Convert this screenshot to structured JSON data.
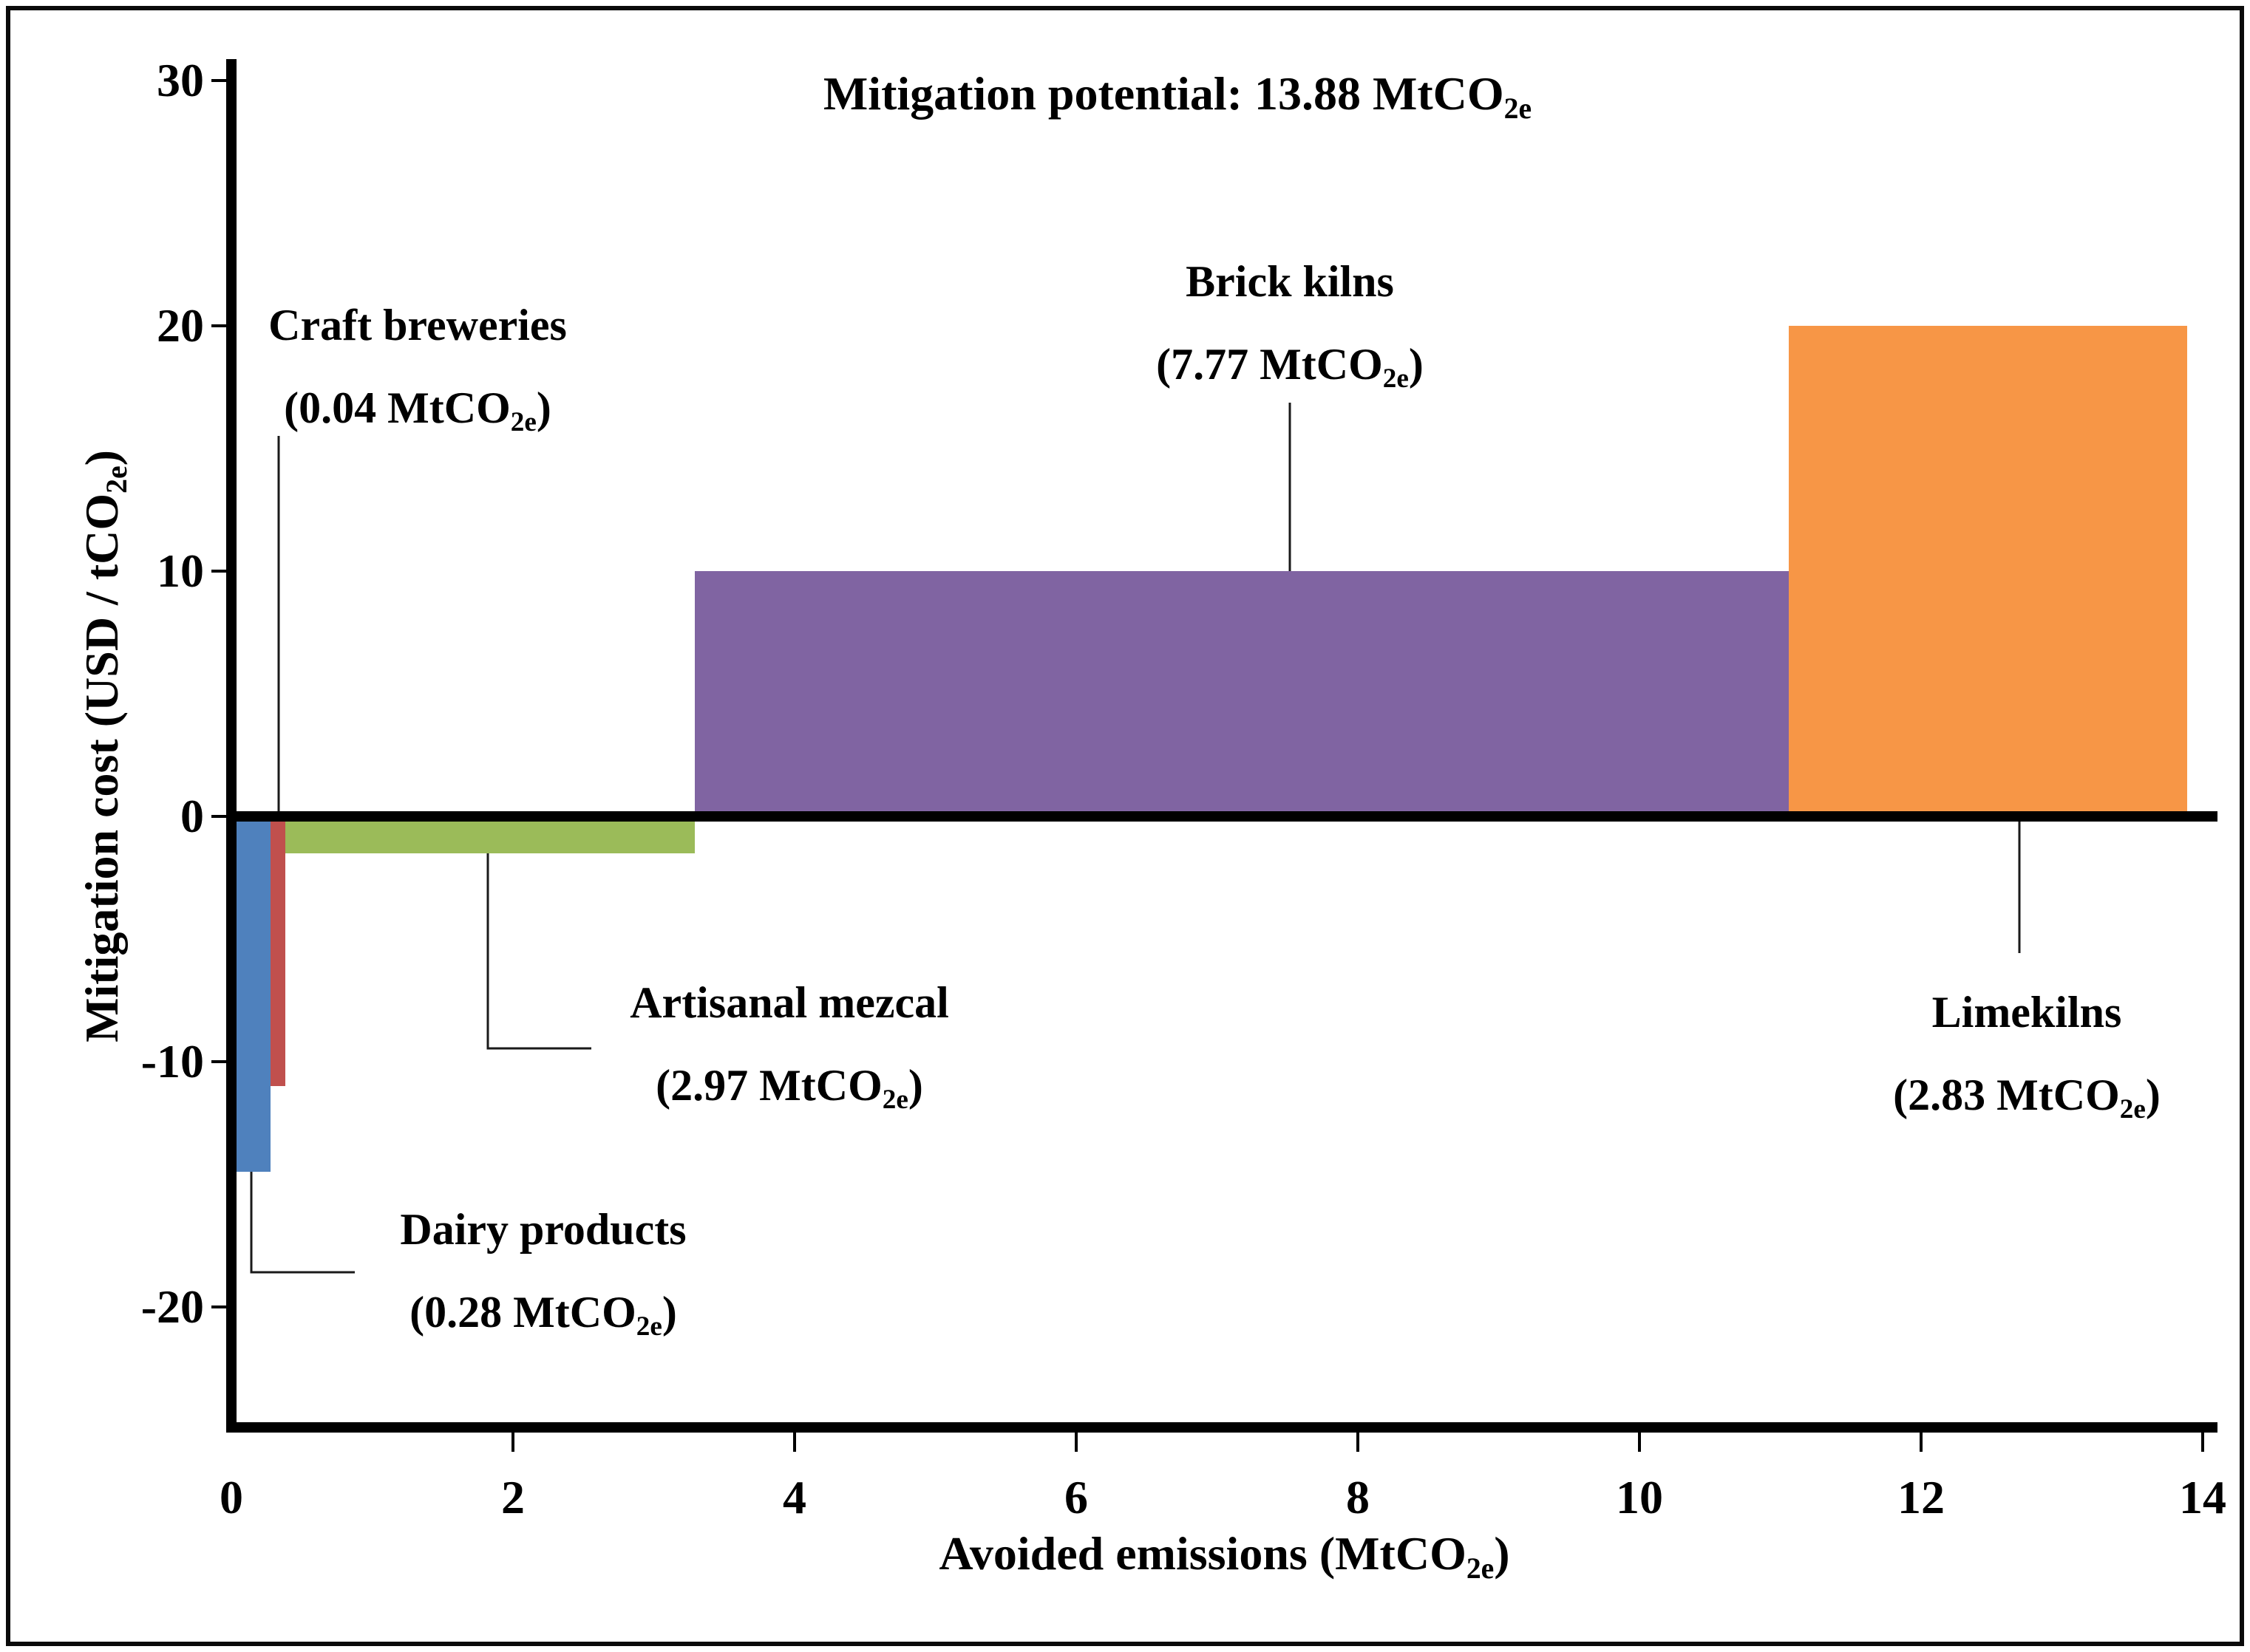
{
  "title": {
    "label": "Mitigation potential:",
    "value": "13.88",
    "unit": "MtCO",
    "unit_sub": "2e"
  },
  "y_axis": {
    "title_main": "Mitigation cost (USD / tCO",
    "title_sub": "2e",
    "title_close": ")",
    "ticks": [
      "30",
      "20",
      "10",
      "0",
      "-10",
      "-20"
    ]
  },
  "x_axis": {
    "title_main": "Avoided emissions (MtCO",
    "title_sub": "2e",
    "title_close": ")",
    "ticks": [
      "0",
      "2",
      "4",
      "6",
      "8",
      "10",
      "12",
      "14"
    ]
  },
  "units": {
    "open": "(",
    "space": " ",
    "mtco": "MtCO",
    "sub": "2e",
    "close": ")"
  },
  "chart_data": {
    "type": "bar",
    "variant": "marginal_abatement_cost_curve",
    "title": "Mitigation potential: 13.88 MtCO2e",
    "xlabel": "Avoided emissions (MtCO2e)",
    "ylabel": "Mitigation cost (USD / tCO2e)",
    "xlim": [
      0,
      14.2
    ],
    "ylim": [
      -24.9,
      30.9
    ],
    "x_ticks": [
      0,
      2,
      4,
      6,
      8,
      10,
      12,
      14
    ],
    "y_ticks": [
      30,
      20,
      10,
      0,
      -10,
      -20
    ],
    "grid": false,
    "legend": false,
    "total_mitigation_potential_mtco2e": 13.88,
    "series": [
      {
        "name": "Dairy products",
        "amount": "0.28",
        "avoided_emissions_mtco2e": 0.28,
        "mitigation_cost_usd_per_tco2e": -14.5,
        "x_start": 0,
        "x_end": 0.28,
        "color": "#4F81BD"
      },
      {
        "name": "Craft breweries",
        "amount": "0.04",
        "avoided_emissions_mtco2e": 0.04,
        "mitigation_cost_usd_per_tco2e": -11,
        "x_start": 0.28,
        "x_end": 0.32,
        "color": "#C0504D"
      },
      {
        "name": "Artisanal mezcal",
        "amount": "2.97",
        "avoided_emissions_mtco2e": 2.97,
        "mitigation_cost_usd_per_tco2e": -1.5,
        "x_start": 0.32,
        "x_end": 3.29,
        "color": "#9BBB59"
      },
      {
        "name": "Brick kilns",
        "amount": "7.77",
        "avoided_emissions_mtco2e": 7.77,
        "mitigation_cost_usd_per_tco2e": 10,
        "x_start": 3.29,
        "x_end": 11.06,
        "color": "#8064A2"
      },
      {
        "name": "Limekilns",
        "amount": "2.83",
        "avoided_emissions_mtco2e": 2.83,
        "mitigation_cost_usd_per_tco2e": 20,
        "x_start": 11.06,
        "x_end": 13.89,
        "color": "#F79646"
      }
    ]
  }
}
